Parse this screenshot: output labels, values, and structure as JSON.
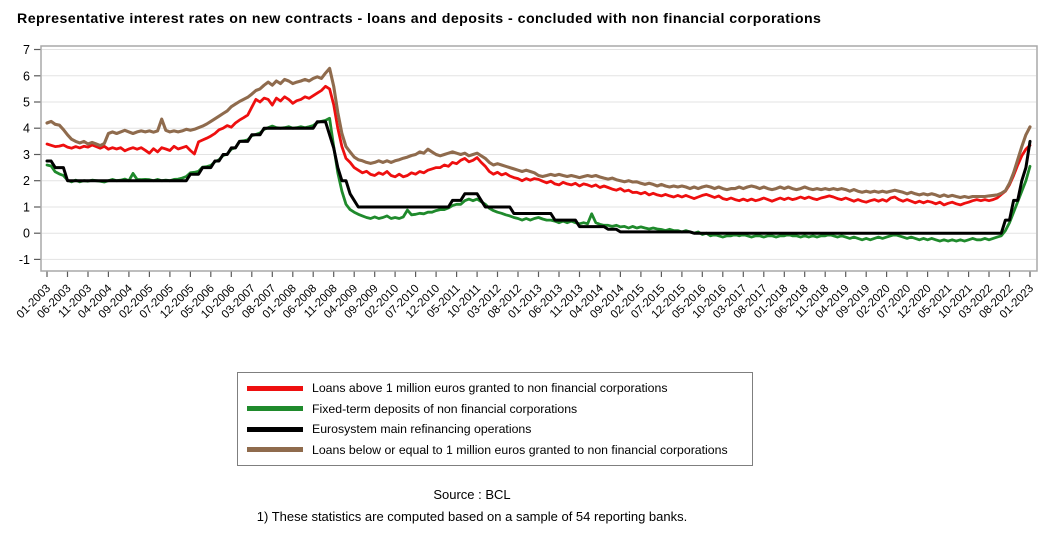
{
  "title": "Representative interest rates on new contracts - loans and deposits - concluded with non financial corporations",
  "footer": {
    "source": "Source : BCL",
    "note": "1) These statistics are computed based on a sample of 54 reporting banks."
  },
  "chart_data": {
    "type": "line",
    "title": "Representative interest rates on new contracts - loans and deposits - concluded with non financial corporations",
    "xlabel": "",
    "ylabel": "",
    "ylim": [
      -1,
      7
    ],
    "y_ticks": [
      7,
      6,
      5,
      4,
      3,
      2,
      1,
      0,
      -1
    ],
    "grid": "horizontal",
    "legend_position": "bottom",
    "x_unit": "month",
    "x_range": [
      "01-2003",
      "01-2023"
    ],
    "x_tick_labels": [
      "01-2003",
      "06-2003",
      "11-2003",
      "04-2004",
      "09-2004",
      "02-2005",
      "07-2005",
      "12-2005",
      "05-2006",
      "10-2006",
      "03-2007",
      "08-2007",
      "01-2008",
      "06-2008",
      "11-2008",
      "04-2009",
      "09-2009",
      "02-2010",
      "07-2010",
      "12-2010",
      "05-2011",
      "10-2011",
      "03-2012",
      "08-2012",
      "01-2013",
      "06-2013",
      "11-2013",
      "04-2014",
      "09-2014",
      "02-2015",
      "07-2015",
      "12-2015",
      "05-2016",
      "10-2016",
      "03-2017",
      "08-2017",
      "01-2018",
      "06-2018",
      "11-2018",
      "04-2019",
      "09-2019",
      "02-2020",
      "07-2020",
      "12-2020",
      "05-2021",
      "10-2021",
      "03-2022",
      "08-2022",
      "01-2023"
    ],
    "x_tick_month_step": 5,
    "series": [
      {
        "id": "loans-above-1m",
        "name": "Loans above 1 million euros granted to non financial corporations",
        "color": "#ee0f0f",
        "values": [
          3.4,
          3.35,
          3.3,
          3.32,
          3.36,
          3.28,
          3.24,
          3.3,
          3.25,
          3.31,
          3.28,
          3.36,
          3.3,
          3.24,
          3.31,
          3.2,
          3.26,
          3.21,
          3.26,
          3.14,
          3.21,
          3.26,
          3.2,
          3.26,
          3.16,
          3.05,
          3.22,
          3.1,
          3.26,
          3.21,
          3.15,
          3.31,
          3.21,
          3.26,
          3.31,
          3.15,
          3.02,
          3.48,
          3.55,
          3.62,
          3.7,
          3.8,
          3.94,
          4.0,
          4.1,
          4.04,
          4.2,
          4.31,
          4.4,
          4.5,
          4.8,
          5.1,
          5.0,
          5.15,
          5.1,
          4.88,
          5.15,
          5.04,
          5.2,
          5.1,
          4.95,
          5.05,
          5.1,
          5.2,
          5.14,
          5.24,
          5.34,
          5.44,
          5.6,
          5.5,
          4.9,
          4.0,
          3.3,
          2.85,
          2.7,
          2.5,
          2.4,
          2.3,
          2.36,
          2.24,
          2.2,
          2.3,
          2.24,
          2.35,
          2.2,
          2.15,
          2.25,
          2.15,
          2.2,
          2.3,
          2.25,
          2.35,
          2.3,
          2.4,
          2.45,
          2.5,
          2.5,
          2.6,
          2.55,
          2.7,
          2.65,
          2.78,
          2.85,
          2.72,
          2.78,
          2.88,
          2.7,
          2.55,
          2.35,
          2.25,
          2.32,
          2.22,
          2.28,
          2.18,
          2.12,
          2.08,
          2.0,
          2.08,
          2.02,
          2.08,
          2.05,
          1.98,
          1.92,
          1.98,
          1.88,
          1.84,
          1.94,
          1.88,
          1.84,
          1.9,
          1.8,
          1.88,
          1.84,
          1.78,
          1.84,
          1.74,
          1.8,
          1.74,
          1.68,
          1.64,
          1.7,
          1.6,
          1.64,
          1.55,
          1.56,
          1.5,
          1.56,
          1.46,
          1.52,
          1.46,
          1.42,
          1.48,
          1.42,
          1.38,
          1.44,
          1.38,
          1.44,
          1.38,
          1.32,
          1.38,
          1.44,
          1.48,
          1.42,
          1.36,
          1.42,
          1.32,
          1.28,
          1.34,
          1.28,
          1.24,
          1.3,
          1.24,
          1.3,
          1.24,
          1.28,
          1.34,
          1.28,
          1.22,
          1.28,
          1.34,
          1.28,
          1.34,
          1.28,
          1.32,
          1.38,
          1.32,
          1.38,
          1.32,
          1.28,
          1.34,
          1.38,
          1.42,
          1.38,
          1.32,
          1.28,
          1.34,
          1.28,
          1.22,
          1.28,
          1.22,
          1.18,
          1.24,
          1.28,
          1.22,
          1.28,
          1.22,
          1.34,
          1.38,
          1.28,
          1.22,
          1.28,
          1.22,
          1.16,
          1.22,
          1.16,
          1.22,
          1.18,
          1.12,
          1.18,
          1.08,
          1.14,
          1.18,
          1.12,
          1.08,
          1.14,
          1.18,
          1.24,
          1.28,
          1.24,
          1.28,
          1.24,
          1.28,
          1.34,
          1.48,
          1.6,
          1.85,
          2.2,
          2.6,
          2.95,
          3.2,
          3.35
        ]
      },
      {
        "id": "fixed-term-deposits",
        "name": "Fixed-term deposits of non financial corporations",
        "color": "#1f8a2c",
        "values": [
          2.6,
          2.56,
          2.34,
          2.26,
          2.2,
          2.02,
          1.96,
          2.02,
          1.96,
          2.0,
          1.98,
          2.02,
          2.0,
          1.98,
          1.95,
          2.0,
          2.05,
          2.0,
          2.02,
          2.06,
          2.0,
          2.28,
          2.05,
          2.04,
          2.05,
          2.04,
          2.0,
          2.05,
          2.0,
          2.02,
          2.0,
          2.05,
          2.06,
          2.1,
          2.16,
          2.3,
          2.32,
          2.36,
          2.52,
          2.54,
          2.58,
          2.72,
          2.8,
          2.96,
          3.02,
          3.2,
          3.26,
          3.5,
          3.52,
          3.56,
          3.72,
          3.76,
          3.82,
          3.96,
          4.02,
          4.08,
          4.02,
          4.0,
          4.02,
          4.06,
          4.0,
          4.02,
          4.06,
          4.02,
          4.06,
          4.1,
          4.22,
          4.26,
          4.3,
          4.38,
          3.3,
          2.3,
          1.6,
          1.1,
          0.9,
          0.8,
          0.72,
          0.66,
          0.6,
          0.56,
          0.62,
          0.56,
          0.6,
          0.66,
          0.56,
          0.6,
          0.56,
          0.62,
          0.88,
          0.7,
          0.72,
          0.76,
          0.74,
          0.8,
          0.8,
          0.86,
          0.9,
          0.9,
          0.96,
          1.05,
          1.1,
          1.1,
          1.24,
          1.3,
          1.24,
          1.3,
          1.2,
          1.1,
          0.95,
          0.86,
          0.8,
          0.76,
          0.7,
          0.66,
          0.6,
          0.56,
          0.5,
          0.56,
          0.5,
          0.56,
          0.6,
          0.54,
          0.5,
          0.5,
          0.46,
          0.4,
          0.46,
          0.4,
          0.46,
          0.4,
          0.36,
          0.4,
          0.36,
          0.74,
          0.4,
          0.34,
          0.3,
          0.3,
          0.26,
          0.3,
          0.24,
          0.26,
          0.2,
          0.26,
          0.2,
          0.24,
          0.2,
          0.16,
          0.2,
          0.16,
          0.14,
          0.1,
          0.15,
          0.1,
          0.1,
          0.05,
          0.1,
          0.05,
          0.0,
          0.05,
          -0.05,
          0.0,
          -0.1,
          -0.05,
          -0.1,
          -0.15,
          -0.1,
          -0.1,
          -0.05,
          -0.1,
          -0.05,
          -0.1,
          -0.15,
          -0.1,
          -0.1,
          -0.15,
          -0.1,
          -0.1,
          -0.15,
          -0.1,
          -0.1,
          -0.05,
          -0.1,
          -0.1,
          -0.15,
          -0.1,
          -0.15,
          -0.1,
          -0.15,
          -0.1,
          -0.1,
          -0.05,
          -0.1,
          -0.15,
          -0.1,
          -0.15,
          -0.2,
          -0.15,
          -0.2,
          -0.25,
          -0.2,
          -0.25,
          -0.2,
          -0.15,
          -0.2,
          -0.15,
          -0.1,
          -0.05,
          -0.1,
          -0.15,
          -0.2,
          -0.15,
          -0.2,
          -0.25,
          -0.2,
          -0.25,
          -0.2,
          -0.25,
          -0.3,
          -0.25,
          -0.3,
          -0.25,
          -0.3,
          -0.25,
          -0.3,
          -0.25,
          -0.2,
          -0.25,
          -0.25,
          -0.2,
          -0.25,
          -0.2,
          -0.15,
          -0.1,
          0.1,
          0.4,
          0.8,
          1.2,
          1.6,
          2.0,
          2.55
        ]
      },
      {
        "id": "eurosystem-mro",
        "name": "Eurosystem main refinancing operations",
        "color": "#000000",
        "values": [
          2.75,
          2.75,
          2.5,
          2.5,
          2.5,
          2.0,
          2.0,
          2.0,
          2.0,
          2.0,
          2.0,
          2.0,
          2.0,
          2.0,
          2.0,
          2.0,
          2.0,
          2.0,
          2.0,
          2.0,
          2.0,
          2.0,
          2.0,
          2.0,
          2.0,
          2.0,
          2.0,
          2.0,
          2.0,
          2.0,
          2.0,
          2.0,
          2.0,
          2.0,
          2.0,
          2.25,
          2.25,
          2.25,
          2.5,
          2.5,
          2.5,
          2.75,
          2.75,
          3.0,
          3.0,
          3.25,
          3.25,
          3.5,
          3.5,
          3.5,
          3.75,
          3.75,
          3.75,
          4.0,
          4.0,
          4.0,
          4.0,
          4.0,
          4.0,
          4.0,
          4.0,
          4.0,
          4.0,
          4.0,
          4.0,
          4.0,
          4.25,
          4.25,
          4.25,
          3.75,
          3.25,
          2.5,
          2.0,
          2.0,
          1.5,
          1.25,
          1.0,
          1.0,
          1.0,
          1.0,
          1.0,
          1.0,
          1.0,
          1.0,
          1.0,
          1.0,
          1.0,
          1.0,
          1.0,
          1.0,
          1.0,
          1.0,
          1.0,
          1.0,
          1.0,
          1.0,
          1.0,
          1.0,
          1.0,
          1.25,
          1.25,
          1.25,
          1.5,
          1.5,
          1.5,
          1.5,
          1.25,
          1.0,
          1.0,
          1.0,
          1.0,
          1.0,
          1.0,
          1.0,
          0.75,
          0.75,
          0.75,
          0.75,
          0.75,
          0.75,
          0.75,
          0.75,
          0.75,
          0.75,
          0.5,
          0.5,
          0.5,
          0.5,
          0.5,
          0.5,
          0.25,
          0.25,
          0.25,
          0.25,
          0.25,
          0.25,
          0.25,
          0.15,
          0.15,
          0.15,
          0.05,
          0.05,
          0.05,
          0.05,
          0.05,
          0.05,
          0.05,
          0.05,
          0.05,
          0.05,
          0.05,
          0.05,
          0.05,
          0.05,
          0.05,
          0.05,
          0.05,
          0.05,
          0.0,
          0.0,
          0.0,
          0.0,
          0.0,
          0.0,
          0.0,
          0.0,
          0.0,
          0.0,
          0.0,
          0.0,
          0.0,
          0.0,
          0.0,
          0.0,
          0.0,
          0.0,
          0.0,
          0.0,
          0.0,
          0.0,
          0.0,
          0.0,
          0.0,
          0.0,
          0.0,
          0.0,
          0.0,
          0.0,
          0.0,
          0.0,
          0.0,
          0.0,
          0.0,
          0.0,
          0.0,
          0.0,
          0.0,
          0.0,
          0.0,
          0.0,
          0.0,
          0.0,
          0.0,
          0.0,
          0.0,
          0.0,
          0.0,
          0.0,
          0.0,
          0.0,
          0.0,
          0.0,
          0.0,
          0.0,
          0.0,
          0.0,
          0.0,
          0.0,
          0.0,
          0.0,
          0.0,
          0.0,
          0.0,
          0.0,
          0.0,
          0.0,
          0.0,
          0.0,
          0.0,
          0.0,
          0.0,
          0.0,
          0.0,
          0.0,
          0.5,
          0.5,
          1.25,
          1.25,
          2.0,
          2.5,
          3.5
        ]
      },
      {
        "id": "loans-below-1m",
        "name": "Loans below or equal to 1 million euros granted to non financial corporations",
        "color": "#8f6b4d",
        "values": [
          4.2,
          4.26,
          4.15,
          4.12,
          3.95,
          3.75,
          3.58,
          3.5,
          3.44,
          3.5,
          3.4,
          3.46,
          3.4,
          3.34,
          3.42,
          3.8,
          3.86,
          3.8,
          3.86,
          3.92,
          3.86,
          3.8,
          3.86,
          3.9,
          3.86,
          3.9,
          3.85,
          3.9,
          4.35,
          3.92,
          3.86,
          3.9,
          3.86,
          3.9,
          3.96,
          3.92,
          3.96,
          4.02,
          4.08,
          4.16,
          4.26,
          4.36,
          4.46,
          4.56,
          4.66,
          4.82,
          4.92,
          5.02,
          5.1,
          5.18,
          5.3,
          5.44,
          5.5,
          5.64,
          5.76,
          5.64,
          5.8,
          5.7,
          5.86,
          5.8,
          5.7,
          5.76,
          5.8,
          5.86,
          5.8,
          5.9,
          5.96,
          5.9,
          6.1,
          6.28,
          5.6,
          4.6,
          3.8,
          3.3,
          3.1,
          2.9,
          2.8,
          2.76,
          2.7,
          2.66,
          2.7,
          2.76,
          2.7,
          2.76,
          2.7,
          2.76,
          2.8,
          2.86,
          2.9,
          2.96,
          3.0,
          3.1,
          3.05,
          3.2,
          3.1,
          3.0,
          2.95,
          3.0,
          3.05,
          3.1,
          3.05,
          3.0,
          3.05,
          2.95,
          3.0,
          3.05,
          2.95,
          2.85,
          2.7,
          2.6,
          2.65,
          2.6,
          2.55,
          2.5,
          2.45,
          2.4,
          2.35,
          2.4,
          2.35,
          2.3,
          2.2,
          2.16,
          2.2,
          2.24,
          2.2,
          2.24,
          2.2,
          2.16,
          2.2,
          2.16,
          2.12,
          2.16,
          2.2,
          2.16,
          2.2,
          2.14,
          2.1,
          2.06,
          2.1,
          2.04,
          2.0,
          1.96,
          2.0,
          1.95,
          1.96,
          1.9,
          1.86,
          1.9,
          1.86,
          1.8,
          1.86,
          1.8,
          1.76,
          1.8,
          1.76,
          1.8,
          1.76,
          1.7,
          1.76,
          1.7,
          1.76,
          1.8,
          1.76,
          1.7,
          1.76,
          1.7,
          1.66,
          1.7,
          1.7,
          1.76,
          1.7,
          1.76,
          1.8,
          1.76,
          1.7,
          1.76,
          1.7,
          1.66,
          1.7,
          1.76,
          1.7,
          1.76,
          1.7,
          1.66,
          1.7,
          1.76,
          1.7,
          1.66,
          1.7,
          1.66,
          1.7,
          1.66,
          1.7,
          1.66,
          1.7,
          1.66,
          1.6,
          1.66,
          1.6,
          1.56,
          1.6,
          1.56,
          1.6,
          1.56,
          1.6,
          1.56,
          1.6,
          1.64,
          1.6,
          1.56,
          1.5,
          1.56,
          1.5,
          1.46,
          1.5,
          1.46,
          1.5,
          1.46,
          1.4,
          1.46,
          1.4,
          1.44,
          1.4,
          1.36,
          1.4,
          1.36,
          1.4,
          1.4,
          1.4,
          1.4,
          1.42,
          1.44,
          1.46,
          1.52,
          1.62,
          1.9,
          2.3,
          2.8,
          3.3,
          3.75,
          4.05
        ]
      }
    ]
  }
}
